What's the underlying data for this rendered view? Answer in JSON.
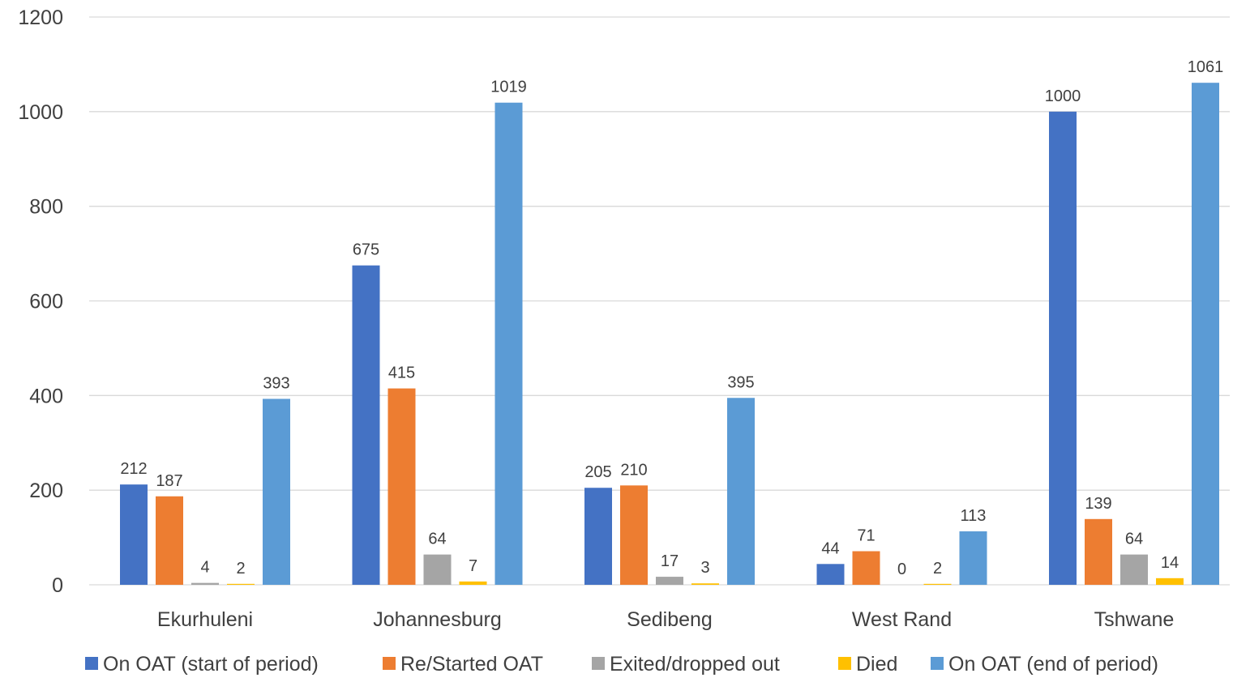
{
  "chart_data": {
    "type": "bar",
    "categories": [
      "Ekurhuleni",
      "Johannesburg",
      "Sedibeng",
      "West Rand",
      "Tshwane"
    ],
    "series": [
      {
        "name": "On OAT (start of period)",
        "color": "#4472c4",
        "values": [
          212,
          675,
          205,
          44,
          1000
        ]
      },
      {
        "name": "Re/Started OAT",
        "color": "#ed7d31",
        "values": [
          187,
          415,
          210,
          71,
          139
        ]
      },
      {
        "name": "Exited/dropped out",
        "color": "#a5a5a5",
        "values": [
          4,
          64,
          17,
          0,
          64
        ]
      },
      {
        "name": "Died",
        "color": "#ffc000",
        "values": [
          2,
          7,
          3,
          2,
          14
        ]
      },
      {
        "name": "On OAT (end of period)",
        "color": "#5b9bd5",
        "values": [
          393,
          1019,
          395,
          113,
          1061
        ]
      }
    ],
    "ylim": [
      0,
      1200
    ],
    "yticks": [
      0,
      200,
      400,
      600,
      800,
      1000,
      1200
    ],
    "grid": true,
    "legend_position": "bottom",
    "data_labels": true
  }
}
